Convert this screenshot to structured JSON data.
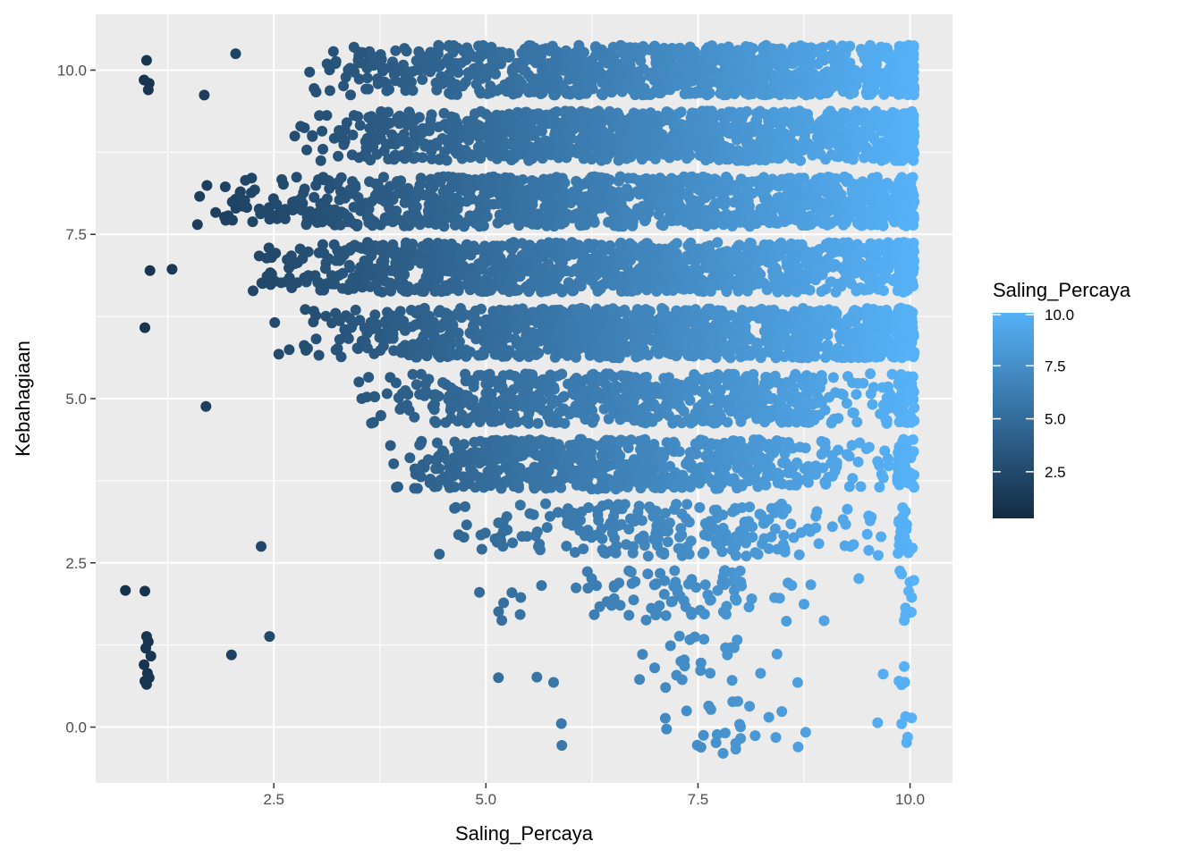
{
  "chart_data": {
    "type": "scatter",
    "title": "",
    "xlabel": "Saling_Percaya",
    "ylabel": "Kebahagiaan",
    "xlim": [
      0.4,
      10.5
    ],
    "ylim": [
      -0.85,
      10.85
    ],
    "x_ticks": [
      2.5,
      5.0,
      7.5,
      10.0
    ],
    "x_tick_labels": [
      "2.5",
      "5.0",
      "7.5",
      "10.0"
    ],
    "y_ticks": [
      0.0,
      2.5,
      5.0,
      7.5,
      10.0
    ],
    "y_tick_labels": [
      "0.0",
      "2.5",
      "5.0",
      "7.5",
      "10.0"
    ],
    "grid": true,
    "jitter": true,
    "legend": {
      "title": "Saling_Percaya",
      "placement": "right",
      "range": [
        0.3,
        10.0
      ],
      "ticks": [
        2.5,
        5.0,
        7.5,
        10.0
      ],
      "tick_labels": [
        "2.5",
        "5.0",
        "7.5",
        "10.0"
      ],
      "low_color": "#132B43",
      "high_color": "#56B1F7"
    },
    "colors": {
      "panel_background": "#EBEBEB",
      "grid_major": "#FFFFFF",
      "low": "#132B43",
      "high": "#56B1F7"
    },
    "rows": [
      {
        "y": 10,
        "dense_from": 5.3,
        "sparse_from": 2.9,
        "density": "high"
      },
      {
        "y": 9,
        "dense_from": 5.0,
        "sparse_from": 2.7,
        "density": "high"
      },
      {
        "y": 8,
        "dense_from": 4.3,
        "sparse_from": 1.6,
        "density": "high"
      },
      {
        "y": 7,
        "dense_from": 4.3,
        "sparse_from": 2.2,
        "density": "high"
      },
      {
        "y": 6,
        "dense_from": 5.0,
        "sparse_from": 2.5,
        "dense_to": 9.5,
        "density": "high"
      },
      {
        "y": 5,
        "dense_from": 5.0,
        "sparse_from": 3.3,
        "dense_to": 8.8,
        "density": "medium"
      },
      {
        "y": 4,
        "dense_from": 5.0,
        "sparse_from": 3.7,
        "dense_to": 8.5,
        "density": "medium"
      },
      {
        "y": 3,
        "dense_from": 6.0,
        "sparse_from": 4.0,
        "dense_to": 8.5,
        "density": "low"
      },
      {
        "y": 2,
        "dense_from": 6.5,
        "sparse_from": 4.5,
        "dense_to": 8.0,
        "density": "sparse"
      },
      {
        "y": 1,
        "dense_from": 7.0,
        "sparse_from": 4.8,
        "dense_to": 8.0,
        "density": "very_sparse"
      },
      {
        "y": 0,
        "dense_from": 7.5,
        "sparse_from": 5.2,
        "dense_to": 8.5,
        "density": "very_sparse"
      }
    ],
    "outliers": [
      [
        1.0,
        10.15
      ],
      [
        0.97,
        9.85
      ],
      [
        1.02,
        9.7
      ],
      [
        1.03,
        9.8
      ],
      [
        1.04,
        6.95
      ],
      [
        0.98,
        6.08
      ],
      [
        0.75,
        2.08
      ],
      [
        0.98,
        2.07
      ],
      [
        1.0,
        1.38
      ],
      [
        1.02,
        1.3
      ],
      [
        0.99,
        1.2
      ],
      [
        1.05,
        1.08
      ],
      [
        0.97,
        0.95
      ],
      [
        1.01,
        0.82
      ],
      [
        0.98,
        0.7
      ],
      [
        1.03,
        0.75
      ],
      [
        1.0,
        0.65
      ],
      [
        1.3,
        6.97
      ],
      [
        1.6,
        7.65
      ],
      [
        1.7,
        4.88
      ],
      [
        2.0,
        1.1
      ],
      [
        2.45,
        1.38
      ],
      [
        2.35,
        2.75
      ],
      [
        2.05,
        10.25
      ],
      [
        1.68,
        9.62
      ]
    ]
  }
}
